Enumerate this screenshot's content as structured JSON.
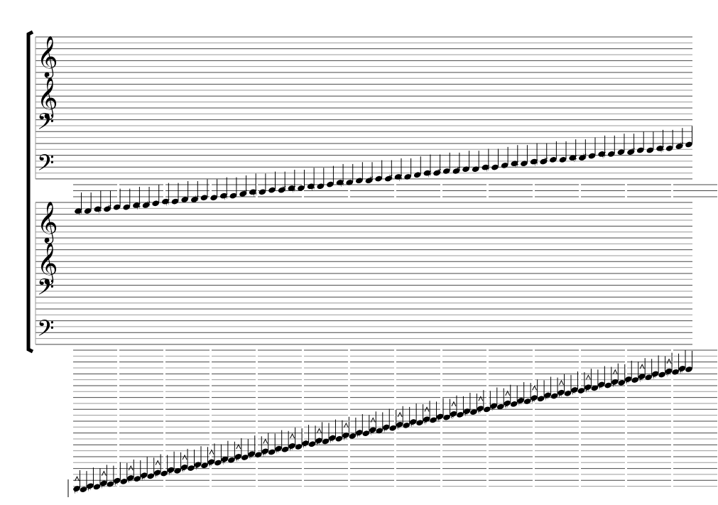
{
  "score": {
    "systems": [
      {
        "clefs": [
          "treble",
          "treble",
          "bass",
          "bass"
        ]
      },
      {
        "clefs": [
          "treble",
          "treble",
          "bass",
          "bass"
        ]
      }
    ],
    "glyphs": {
      "treble": "𝄞",
      "bass": "𝄢",
      "sharp": "♯"
    },
    "colors": {
      "ink": "#000000",
      "staff_line_dark": "#444444",
      "staff_line_light": "#9a9a9a",
      "background": "#ffffff"
    }
  }
}
